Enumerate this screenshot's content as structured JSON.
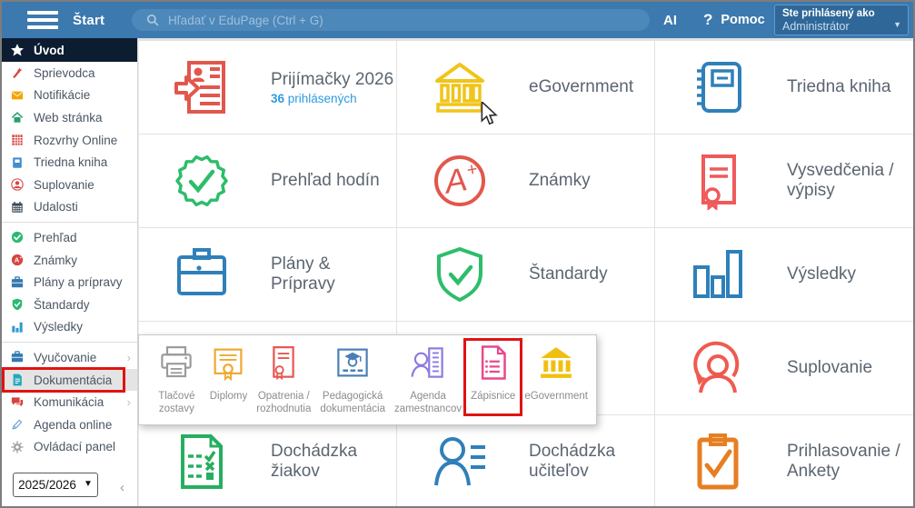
{
  "topbar": {
    "start_label": "Štart",
    "search_placeholder": "Hľadať v EduPage (Ctrl + G)",
    "ai_label": "AI",
    "help_icon": "?",
    "help_label": "Pomoc",
    "user_line1": "Ste prihlásený ako",
    "user_line2": "Administrátor"
  },
  "sidebar": {
    "groups": [
      {
        "items": [
          {
            "label": "Úvod",
            "icon": "star-icon",
            "color": "#ffffff",
            "active": true
          },
          {
            "label": "Sprievodca",
            "icon": "wand-icon",
            "color": "#d64541"
          },
          {
            "label": "Notifikácie",
            "icon": "envelope-icon",
            "color": "#f5a300"
          },
          {
            "label": "Web stránka",
            "icon": "home-icon",
            "color": "#27a06b"
          },
          {
            "label": "Rozvrhy Online",
            "icon": "timetable-grid-icon",
            "color": "#d64541"
          },
          {
            "label": "Triedna kniha",
            "icon": "book-icon",
            "color": "#3d8fd1"
          },
          {
            "label": "Suplovanie",
            "icon": "person-circle-icon",
            "color": "#d64541"
          },
          {
            "label": "Udalosti",
            "icon": "calendar-icon",
            "color": "#3f4a56"
          }
        ]
      },
      {
        "items": [
          {
            "label": "Prehľad",
            "icon": "check-circle-icon",
            "color": "#2eb872"
          },
          {
            "label": "Známky",
            "icon": "grade-circle-icon",
            "color": "#d64541"
          },
          {
            "label": "Plány a prípravy",
            "icon": "briefcase-icon",
            "color": "#3579b1"
          },
          {
            "label": "Štandardy",
            "icon": "shield-icon",
            "color": "#2eb872"
          },
          {
            "label": "Výsledky",
            "icon": "bar-chart-icon",
            "color": "#2e9ad0"
          }
        ]
      },
      {
        "items": [
          {
            "label": "Vyučovanie",
            "icon": "briefcase-icon",
            "color": "#3579b1",
            "chevron": "›"
          },
          {
            "label": "Dokumentácia",
            "icon": "document-icon",
            "color": "#23a7bd",
            "selected": true
          },
          {
            "label": "Komunikácia",
            "icon": "chat-icon",
            "color": "#d64541",
            "chevron": "›"
          },
          {
            "label": "Agenda online",
            "icon": "pencil-icon",
            "color": "#5b9bd5"
          },
          {
            "label": "Ovládací panel",
            "icon": "gear-icon",
            "color": "#9aa0a6"
          }
        ]
      }
    ],
    "year_select": "2025/2026",
    "collapse_glyph": "‹"
  },
  "tiles": [
    {
      "label": "Prijímačky 2026",
      "sub_strong": "36",
      "sub_rest": " prihlásených",
      "icon": "admissions-document-icon",
      "color": "#e2574c"
    },
    {
      "label": "eGovernment",
      "icon": "government-building-icon",
      "color": "#f0c419"
    },
    {
      "label": "Triedna kniha",
      "icon": "class-register-notebook-icon",
      "color": "#2f80b9"
    },
    {
      "label": "Prehľad hodín",
      "icon": "lessons-overview-badge-icon",
      "color": "#2ebd6b"
    },
    {
      "label": "Známky",
      "icon": "grades-icon",
      "color": "#e2574c"
    },
    {
      "label": "Vysvedčenia / výpisy",
      "icon": "certificate-icon",
      "color": "#ef5a5a"
    },
    {
      "label": "Plány & Prípravy",
      "icon": "briefcase-outline-icon",
      "color": "#2f80b9"
    },
    {
      "label": "Štandardy",
      "icon": "shield-outline-icon",
      "color": "#2ebd6b"
    },
    {
      "label": "Výsledky",
      "icon": "results-chart-icon",
      "color": "#2f80b9"
    },
    {
      "label": "",
      "icon": "",
      "color": ""
    },
    {
      "label": "",
      "icon": "",
      "color": ""
    },
    {
      "label": "Suplovanie",
      "icon": "substitution-person-icon",
      "color": "#ef5a50"
    },
    {
      "label": "Dochádzka žiakov",
      "icon": "student-attendance-icon",
      "color": "#27ae60"
    },
    {
      "label": "Dochádzka učiteľov",
      "icon": "teacher-attendance-icon",
      "color": "#2f80b9"
    },
    {
      "label": "Prihlasovanie / Ankety",
      "icon": "signup-surveys-clipboard-icon",
      "color": "#e67e22"
    }
  ],
  "popup": {
    "items": [
      {
        "label": "Tlačové zostavy",
        "icon": "printer-icon",
        "color": "#9b9b9b"
      },
      {
        "label": "Diplomy",
        "icon": "diploma-icon",
        "color": "#f0a830"
      },
      {
        "label": "Opatrenia / rozhodnutia",
        "icon": "decree-certificate-icon",
        "color": "#e8564e"
      },
      {
        "label": "Pedagogická dokumentácia",
        "icon": "pedagogical-doc-icon",
        "color": "#4a7fb5"
      },
      {
        "label": "Agenda zamestnancov",
        "icon": "staff-agenda-icon",
        "color": "#8d7ae0"
      },
      {
        "label": "Zápisnice",
        "icon": "minutes-document-icon",
        "color": "#e8498a",
        "highlighted": true
      },
      {
        "label": "eGovernment",
        "icon": "government-building-filled-icon",
        "color": "#f0c010"
      }
    ]
  },
  "colors": {
    "topbar_bg": "#3c79ae",
    "search_bg": "#4d88ba",
    "userbox_bg": "#2f6898",
    "active_item_bg": "#0d1d31",
    "highlight_red": "#e01313",
    "tile_text": "#5b6570",
    "link_blue": "#2d9be0"
  }
}
